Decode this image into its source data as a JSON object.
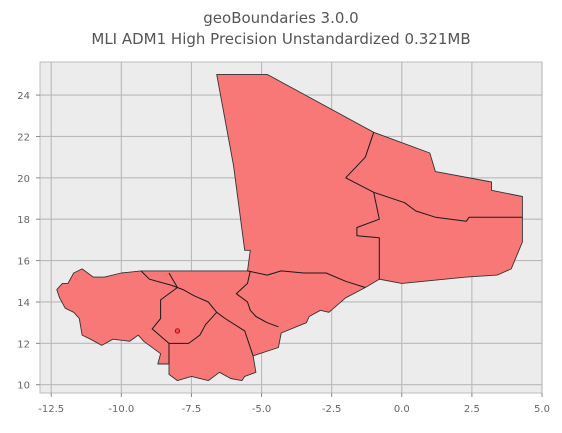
{
  "title": "geoBoundaries 3.0.0",
  "subtitle": "MLI ADM1 High Precision Unstandardized 0.321MB",
  "chart_data": {
    "type": "map",
    "map_of": "MLI ADM1",
    "x_ticks": [
      "-12.5",
      "-10.0",
      "-7.5",
      "-5.0",
      "-2.5",
      "0.0",
      "2.5",
      "5.0"
    ],
    "y_ticks": [
      "10",
      "12",
      "14",
      "16",
      "18",
      "20",
      "22",
      "24"
    ],
    "xlim": [
      -12.9,
      5.0
    ],
    "ylim": [
      9.6,
      25.6
    ],
    "grid": true,
    "colors": {
      "fill": "#f87777",
      "stroke": "#333333",
      "plot_bg": "#ececec",
      "grid": "#b9b9b9"
    },
    "outline": [
      [
        -6.6,
        25.0
      ],
      [
        -4.8,
        25.0
      ],
      [
        -1.0,
        22.2
      ],
      [
        1.0,
        21.2
      ],
      [
        1.2,
        20.3
      ],
      [
        3.2,
        19.8
      ],
      [
        3.2,
        19.4
      ],
      [
        4.3,
        19.1
      ],
      [
        4.3,
        16.9
      ],
      [
        3.9,
        15.6
      ],
      [
        3.4,
        15.3
      ],
      [
        2.3,
        15.2
      ],
      [
        0.0,
        14.9
      ],
      [
        -0.8,
        15.1
      ],
      [
        -1.3,
        14.7
      ],
      [
        -2.0,
        14.2
      ],
      [
        -2.6,
        13.5
      ],
      [
        -2.9,
        13.6
      ],
      [
        -3.3,
        13.3
      ],
      [
        -3.4,
        13.0
      ],
      [
        -4.3,
        12.5
      ],
      [
        -4.4,
        11.8
      ],
      [
        -5.3,
        11.4
      ],
      [
        -5.2,
        10.6
      ],
      [
        -5.6,
        10.4
      ],
      [
        -5.7,
        10.2
      ],
      [
        -6.1,
        10.3
      ],
      [
        -6.5,
        10.6
      ],
      [
        -6.9,
        10.2
      ],
      [
        -7.5,
        10.4
      ],
      [
        -8.0,
        10.2
      ],
      [
        -8.3,
        10.5
      ],
      [
        -8.3,
        11.0
      ],
      [
        -8.7,
        11.0
      ],
      [
        -8.6,
        11.5
      ],
      [
        -9.2,
        12.1
      ],
      [
        -9.4,
        12.4
      ],
      [
        -9.7,
        12.1
      ],
      [
        -10.3,
        12.2
      ],
      [
        -10.7,
        11.9
      ],
      [
        -11.1,
        12.2
      ],
      [
        -11.4,
        12.4
      ],
      [
        -11.5,
        13.2
      ],
      [
        -11.7,
        13.5
      ],
      [
        -12.0,
        13.7
      ],
      [
        -12.2,
        14.2
      ],
      [
        -12.3,
        14.6
      ],
      [
        -12.1,
        14.9
      ],
      [
        -11.9,
        14.9
      ],
      [
        -11.7,
        15.4
      ],
      [
        -11.4,
        15.6
      ],
      [
        -11.0,
        15.2
      ],
      [
        -10.6,
        15.2
      ],
      [
        -10.0,
        15.4
      ],
      [
        -9.3,
        15.5
      ],
      [
        -5.5,
        15.5
      ],
      [
        -5.4,
        16.5
      ],
      [
        -5.6,
        16.5
      ],
      [
        -6.0,
        20.6
      ],
      [
        -6.6,
        25.0
      ]
    ],
    "admin_borders": [
      [
        [
          -1.0,
          22.2
        ],
        [
          -1.3,
          21.0
        ],
        [
          -2.0,
          20.0
        ],
        [
          -1.0,
          19.3
        ],
        [
          -0.8,
          18.0
        ],
        [
          -1.6,
          17.6
        ],
        [
          -1.6,
          17.2
        ],
        [
          -0.8,
          17.1
        ],
        [
          -0.8,
          16.2
        ],
        [
          -0.8,
          15.1
        ]
      ],
      [
        [
          -1.0,
          19.3
        ],
        [
          0.1,
          18.8
        ],
        [
          0.5,
          18.4
        ],
        [
          1.2,
          18.1
        ],
        [
          2.3,
          17.9
        ],
        [
          2.4,
          18.1
        ],
        [
          4.3,
          18.1
        ]
      ],
      [
        [
          -5.5,
          15.5
        ],
        [
          -4.8,
          15.3
        ],
        [
          -4.3,
          15.5
        ],
        [
          -3.5,
          15.4
        ],
        [
          -2.7,
          15.4
        ],
        [
          -2.0,
          15.0
        ],
        [
          -1.3,
          14.7
        ]
      ],
      [
        [
          -9.3,
          15.5
        ],
        [
          -9.0,
          15.1
        ],
        [
          -8.2,
          14.8
        ],
        [
          -7.8,
          14.6
        ],
        [
          -7.4,
          14.3
        ],
        [
          -6.9,
          14.0
        ],
        [
          -6.6,
          13.5
        ],
        [
          -6.3,
          13.2
        ],
        [
          -5.6,
          12.6
        ],
        [
          -5.3,
          11.4
        ]
      ],
      [
        [
          -8.3,
          15.4
        ],
        [
          -8.0,
          14.7
        ],
        [
          -8.6,
          14.1
        ],
        [
          -8.6,
          13.2
        ],
        [
          -8.9,
          12.7
        ],
        [
          -8.3,
          12.0
        ],
        [
          -8.3,
          11.0
        ]
      ],
      [
        [
          -6.6,
          13.5
        ],
        [
          -7.0,
          12.9
        ],
        [
          -7.2,
          12.4
        ],
        [
          -7.6,
          12.0
        ],
        [
          -8.3,
          12.0
        ]
      ],
      [
        [
          -5.4,
          15.5
        ],
        [
          -5.5,
          14.9
        ],
        [
          -5.9,
          14.4
        ],
        [
          -5.5,
          14.0
        ],
        [
          -5.4,
          13.6
        ],
        [
          -5.2,
          13.3
        ],
        [
          -4.8,
          13.0
        ],
        [
          -4.4,
          12.8
        ]
      ]
    ],
    "markers": [
      [
        -8.0,
        12.6
      ]
    ]
  }
}
